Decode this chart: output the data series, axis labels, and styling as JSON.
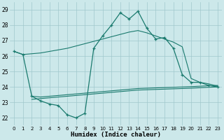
{
  "xlabel": "Humidex (Indice chaleur)",
  "bg_color": "#cce8ea",
  "grid_color": "#a0c8cc",
  "line_color": "#1a7a6e",
  "x_ticks": [
    0,
    1,
    2,
    3,
    4,
    5,
    6,
    7,
    8,
    9,
    10,
    11,
    12,
    13,
    14,
    15,
    16,
    17,
    18,
    19,
    20,
    21,
    22,
    23
  ],
  "ylim": [
    21.5,
    29.5
  ],
  "xlim": [
    -0.5,
    23.5
  ],
  "yticks": [
    22,
    23,
    24,
    25,
    26,
    27,
    28,
    29
  ],
  "curve": {
    "x": [
      0,
      1,
      2,
      3,
      4,
      5,
      6,
      7,
      8,
      9,
      10,
      11,
      12,
      13,
      14,
      15,
      16,
      17,
      18,
      19,
      20,
      21,
      22,
      23
    ],
    "y": [
      26.3,
      26.1,
      23.4,
      23.1,
      22.9,
      22.8,
      22.2,
      22.0,
      22.3,
      26.5,
      27.3,
      28.0,
      28.8,
      28.4,
      28.9,
      27.8,
      27.1,
      27.2,
      26.5,
      24.8,
      24.3,
      24.3,
      24.1,
      24.0
    ]
  },
  "line_top": {
    "x": [
      0,
      1,
      2,
      3,
      4,
      5,
      6,
      7,
      8,
      9,
      10,
      11,
      12,
      13,
      14,
      15,
      16,
      17,
      18,
      19,
      20,
      21,
      22,
      23
    ],
    "y": [
      26.3,
      26.1,
      26.15,
      26.2,
      26.3,
      26.4,
      26.5,
      26.65,
      26.8,
      26.95,
      27.1,
      27.25,
      27.4,
      27.55,
      27.65,
      27.5,
      27.3,
      27.1,
      26.9,
      26.6,
      24.55,
      24.3,
      24.2,
      24.05
    ]
  },
  "line_mid1": {
    "x": [
      2,
      3,
      4,
      5,
      6,
      7,
      8,
      9,
      10,
      11,
      12,
      13,
      14,
      15,
      16,
      17,
      18,
      19,
      20,
      21,
      22,
      23
    ],
    "y": [
      23.4,
      23.35,
      23.4,
      23.45,
      23.5,
      23.55,
      23.6,
      23.65,
      23.7,
      23.75,
      23.8,
      23.85,
      23.9,
      23.92,
      23.94,
      23.96,
      23.98,
      24.0,
      24.02,
      24.05,
      24.08,
      24.1
    ]
  },
  "line_mid2": {
    "x": [
      2,
      3,
      4,
      5,
      6,
      7,
      8,
      9,
      10,
      11,
      12,
      13,
      14,
      15,
      16,
      17,
      18,
      19,
      20,
      21,
      22,
      23
    ],
    "y": [
      23.2,
      23.25,
      23.3,
      23.35,
      23.4,
      23.45,
      23.5,
      23.55,
      23.6,
      23.65,
      23.7,
      23.75,
      23.8,
      23.82,
      23.84,
      23.86,
      23.88,
      23.9,
      23.92,
      23.95,
      23.98,
      24.0
    ]
  }
}
